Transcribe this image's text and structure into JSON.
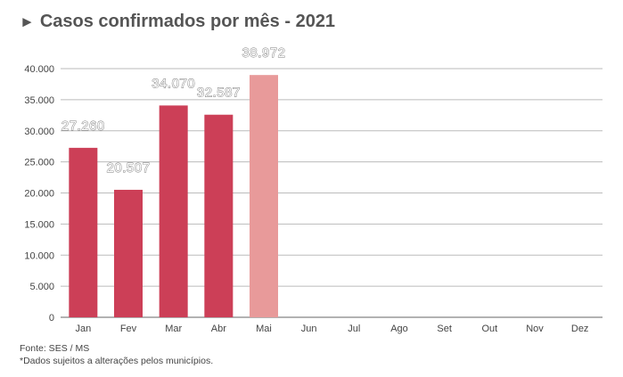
{
  "chart_data": {
    "type": "bar",
    "title": "Casos confirmados por mês - 2021",
    "title_marker": "►",
    "categories": [
      "Jan",
      "Fev",
      "Mar",
      "Abr",
      "Mai",
      "Jun",
      "Jul",
      "Ago",
      "Set",
      "Out",
      "Nov",
      "Dez"
    ],
    "values": [
      27260,
      20507,
      34070,
      32587,
      38972,
      null,
      null,
      null,
      null,
      null,
      null,
      null
    ],
    "value_labels": [
      "27.260",
      "20.507",
      "34.070",
      "32.587",
      "38.972",
      "",
      "",
      "",
      "",
      "",
      "",
      ""
    ],
    "highlight_index": 4,
    "ylim": [
      0,
      40000
    ],
    "yticks": [
      0,
      5000,
      10000,
      15000,
      20000,
      25000,
      30000,
      35000,
      40000
    ],
    "ytick_labels": [
      "0",
      "5.000",
      "10.000",
      "15.000",
      "20.000",
      "25.000",
      "30.000",
      "35.000",
      "40.000"
    ],
    "xlabel": "",
    "ylabel": "",
    "grid": true,
    "colors": {
      "bar": "#cc3f57",
      "bar_highlight": "#e89a9a",
      "grid": "#bbbbbb"
    }
  },
  "footer": {
    "source": "Fonte: SES / MS",
    "note": "*Dados sujeitos a alterações pelos municípios."
  }
}
